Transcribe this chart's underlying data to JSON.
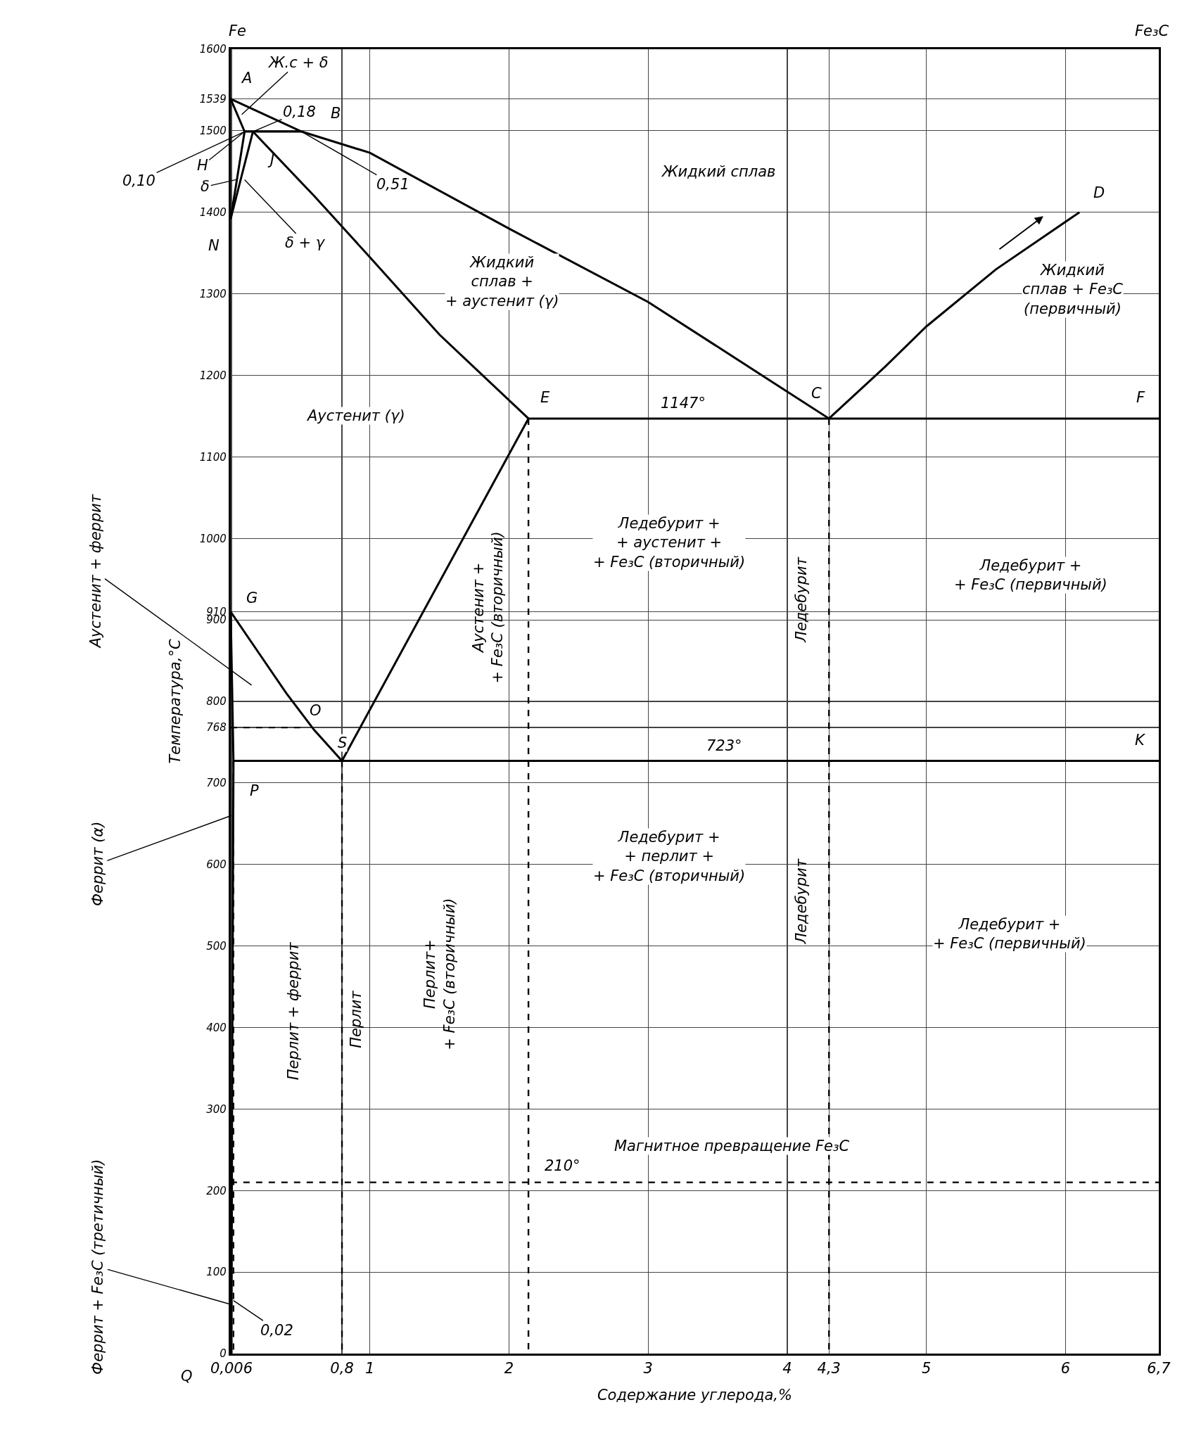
{
  "chart_data": {
    "type": "line",
    "xlabel": "Содержание углерода,%",
    "ylabel": "Температура,°С",
    "xlim": [
      0,
      6.67
    ],
    "ylim": [
      0,
      1600
    ],
    "xticks": [
      {
        "value": 0.006,
        "label": "0,006"
      },
      {
        "value": 0.8,
        "label": "0,8"
      },
      1,
      2,
      3,
      4,
      {
        "value": 4.3,
        "label": "4,3"
      },
      5,
      6,
      {
        "value": 6.67,
        "label": "6,7"
      }
    ],
    "yticks": [
      0,
      100,
      200,
      300,
      400,
      500,
      600,
      700,
      768,
      800,
      900,
      910,
      1000,
      1100,
      1200,
      1300,
      1400,
      1500,
      1539,
      1600
    ],
    "grid": true,
    "series": [
      {
        "color": "#000000",
        "x": [
          0,
          0.51,
          1,
          2,
          3,
          4,
          4.3,
          4.7,
          5,
          5.5,
          6.1
        ],
        "values": [
          1539,
          1499,
          1473,
          1380,
          1290,
          1180,
          1147,
          1210,
          1260,
          1330,
          1400
        ]
      },
      {
        "color": "#000000",
        "x": [
          0,
          0.1
        ],
        "values": [
          1539,
          1499
        ]
      },
      {
        "color": "#000000",
        "x": [
          0.1,
          0.51
        ],
        "values": [
          1499,
          1499
        ]
      },
      {
        "color": "#000000",
        "x": [
          0,
          0.1
        ],
        "values": [
          1392,
          1499
        ]
      },
      {
        "color": "#000000",
        "x": [
          0,
          0.16
        ],
        "values": [
          1392,
          1499
        ]
      },
      {
        "color": "#000000",
        "x": [
          0.16,
          0.6,
          1,
          1.5,
          2.14
        ],
        "values": [
          1499,
          1420,
          1345,
          1250,
          1147
        ]
      },
      {
        "color": "#000000",
        "x": [
          2.14,
          6.67
        ],
        "values": [
          1147,
          1147
        ]
      },
      {
        "color": "#000000",
        "x": [
          0,
          0.2,
          0.4,
          0.6,
          0.8
        ],
        "values": [
          910,
          860,
          810,
          765,
          727
        ]
      },
      {
        "color": "#000000",
        "x": [
          0.8,
          2.14
        ],
        "values": [
          727,
          1147
        ]
      },
      {
        "color": "#000000",
        "x": [
          0,
          0.01,
          0.02,
          0.01,
          0.006
        ],
        "values": [
          910,
          820,
          727,
          300,
          0
        ]
      },
      {
        "color": "#000000",
        "x": [
          0.02,
          6.67
        ],
        "values": [
          727,
          727
        ]
      },
      {
        "color": "#000000",
        "line_style": "dashed",
        "x": [
          0,
          0.5
        ],
        "values": [
          768,
          768
        ]
      },
      {
        "color": "#000000",
        "line_style": "dashed",
        "x": [
          0.02,
          0.02
        ],
        "values": [
          727,
          0
        ]
      },
      {
        "color": "#000000",
        "line_style": "dashed",
        "x": [
          0.8,
          0.8
        ],
        "values": [
          727,
          0
        ]
      },
      {
        "color": "#000000",
        "line_style": "dashed",
        "x": [
          2.14,
          2.14
        ],
        "values": [
          1147,
          0
        ]
      },
      {
        "color": "#000000",
        "line_style": "dashed",
        "x": [
          4.3,
          4.3
        ],
        "values": [
          1147,
          0
        ]
      }
    ],
    "ref_lines": [
      {
        "axis": "y",
        "value": 210,
        "label": "210°",
        "line_style": "dashed",
        "color": "#000000"
      }
    ],
    "annotations": [
      "Fe",
      "Fe₃C",
      {
        "text": "A",
        "x": 0,
        "y": 1539
      },
      {
        "text": "B",
        "x": 0.51,
        "y": 1499
      },
      {
        "text": "H",
        "x": 0.1,
        "y": 1499
      },
      {
        "text": "J",
        "x": 0.16,
        "y": 1499
      },
      {
        "text": "N",
        "x": 0,
        "y": 1392
      },
      {
        "text": "G",
        "x": 0,
        "y": 910
      },
      {
        "text": "O",
        "x": 0.5,
        "y": 768
      },
      {
        "text": "S",
        "x": 0.8,
        "y": 727
      },
      {
        "text": "P",
        "x": 0.02,
        "y": 727
      },
      {
        "text": "Q",
        "x": 0,
        "y": 0
      },
      {
        "text": "E",
        "x": 2.14,
        "y": 1147
      },
      {
        "text": "C",
        "x": 4.3,
        "y": 1147
      },
      {
        "text": "D",
        "x": 6.1,
        "y": 1400
      },
      {
        "text": "F",
        "x": 6.67,
        "y": 1147
      },
      {
        "text": "K",
        "x": 6.67,
        "y": 727
      },
      {
        "text": "0,10",
        "x": 0.1,
        "y": 1499
      },
      {
        "text": "0,18",
        "x": 0.16,
        "y": 1499
      },
      {
        "text": "0,51",
        "x": 0.51,
        "y": 1499
      },
      {
        "text": "Ж.с + δ",
        "x": 0.08,
        "y": 1520
      },
      {
        "text": "δ",
        "x": 0.04,
        "y": 1440
      },
      {
        "text": "δ + γ",
        "x": 0.1,
        "y": 1440
      },
      {
        "text": "0,02",
        "x": 0.02,
        "y": 65
      },
      "Жидкий сплав",
      "Жидкий\nсплав +\n+ аустенит (γ)",
      "Жидкий\nсплав + Fe₃C\n(первичный)",
      "Аустенит (γ)",
      {
        "text": "1147°",
        "x": 3.25,
        "y": 1147
      },
      "Ледебурит +\n+ аустенит +\n+ Fe₃C (вторичный)",
      "Ледебурит",
      "Ледебурит +\n+ Fe₃C (первичный)",
      "Аустенит +\n+ Fe₃C (вторичный)",
      {
        "text": "723°",
        "x": 3.55,
        "y": 727
      },
      "Ледебурит +\n+ перлит +\n+ Fe₃C (вторичный)",
      "Ледебурит",
      "Ледебурит +\n+ Fe₃C (первичный)",
      "Перлит + феррит",
      "Перлит",
      "Перлит+\n+ Fe₃C (вторичный)",
      "Магнитное превращение Fe₃C",
      "Аустенит + феррит",
      {
        "text": "Феррит (α)",
        "x": 0.005,
        "y": 660
      },
      {
        "text": "Феррит + Fe₃C (третичный)",
        "x": 0.008,
        "y": 60
      }
    ]
  }
}
